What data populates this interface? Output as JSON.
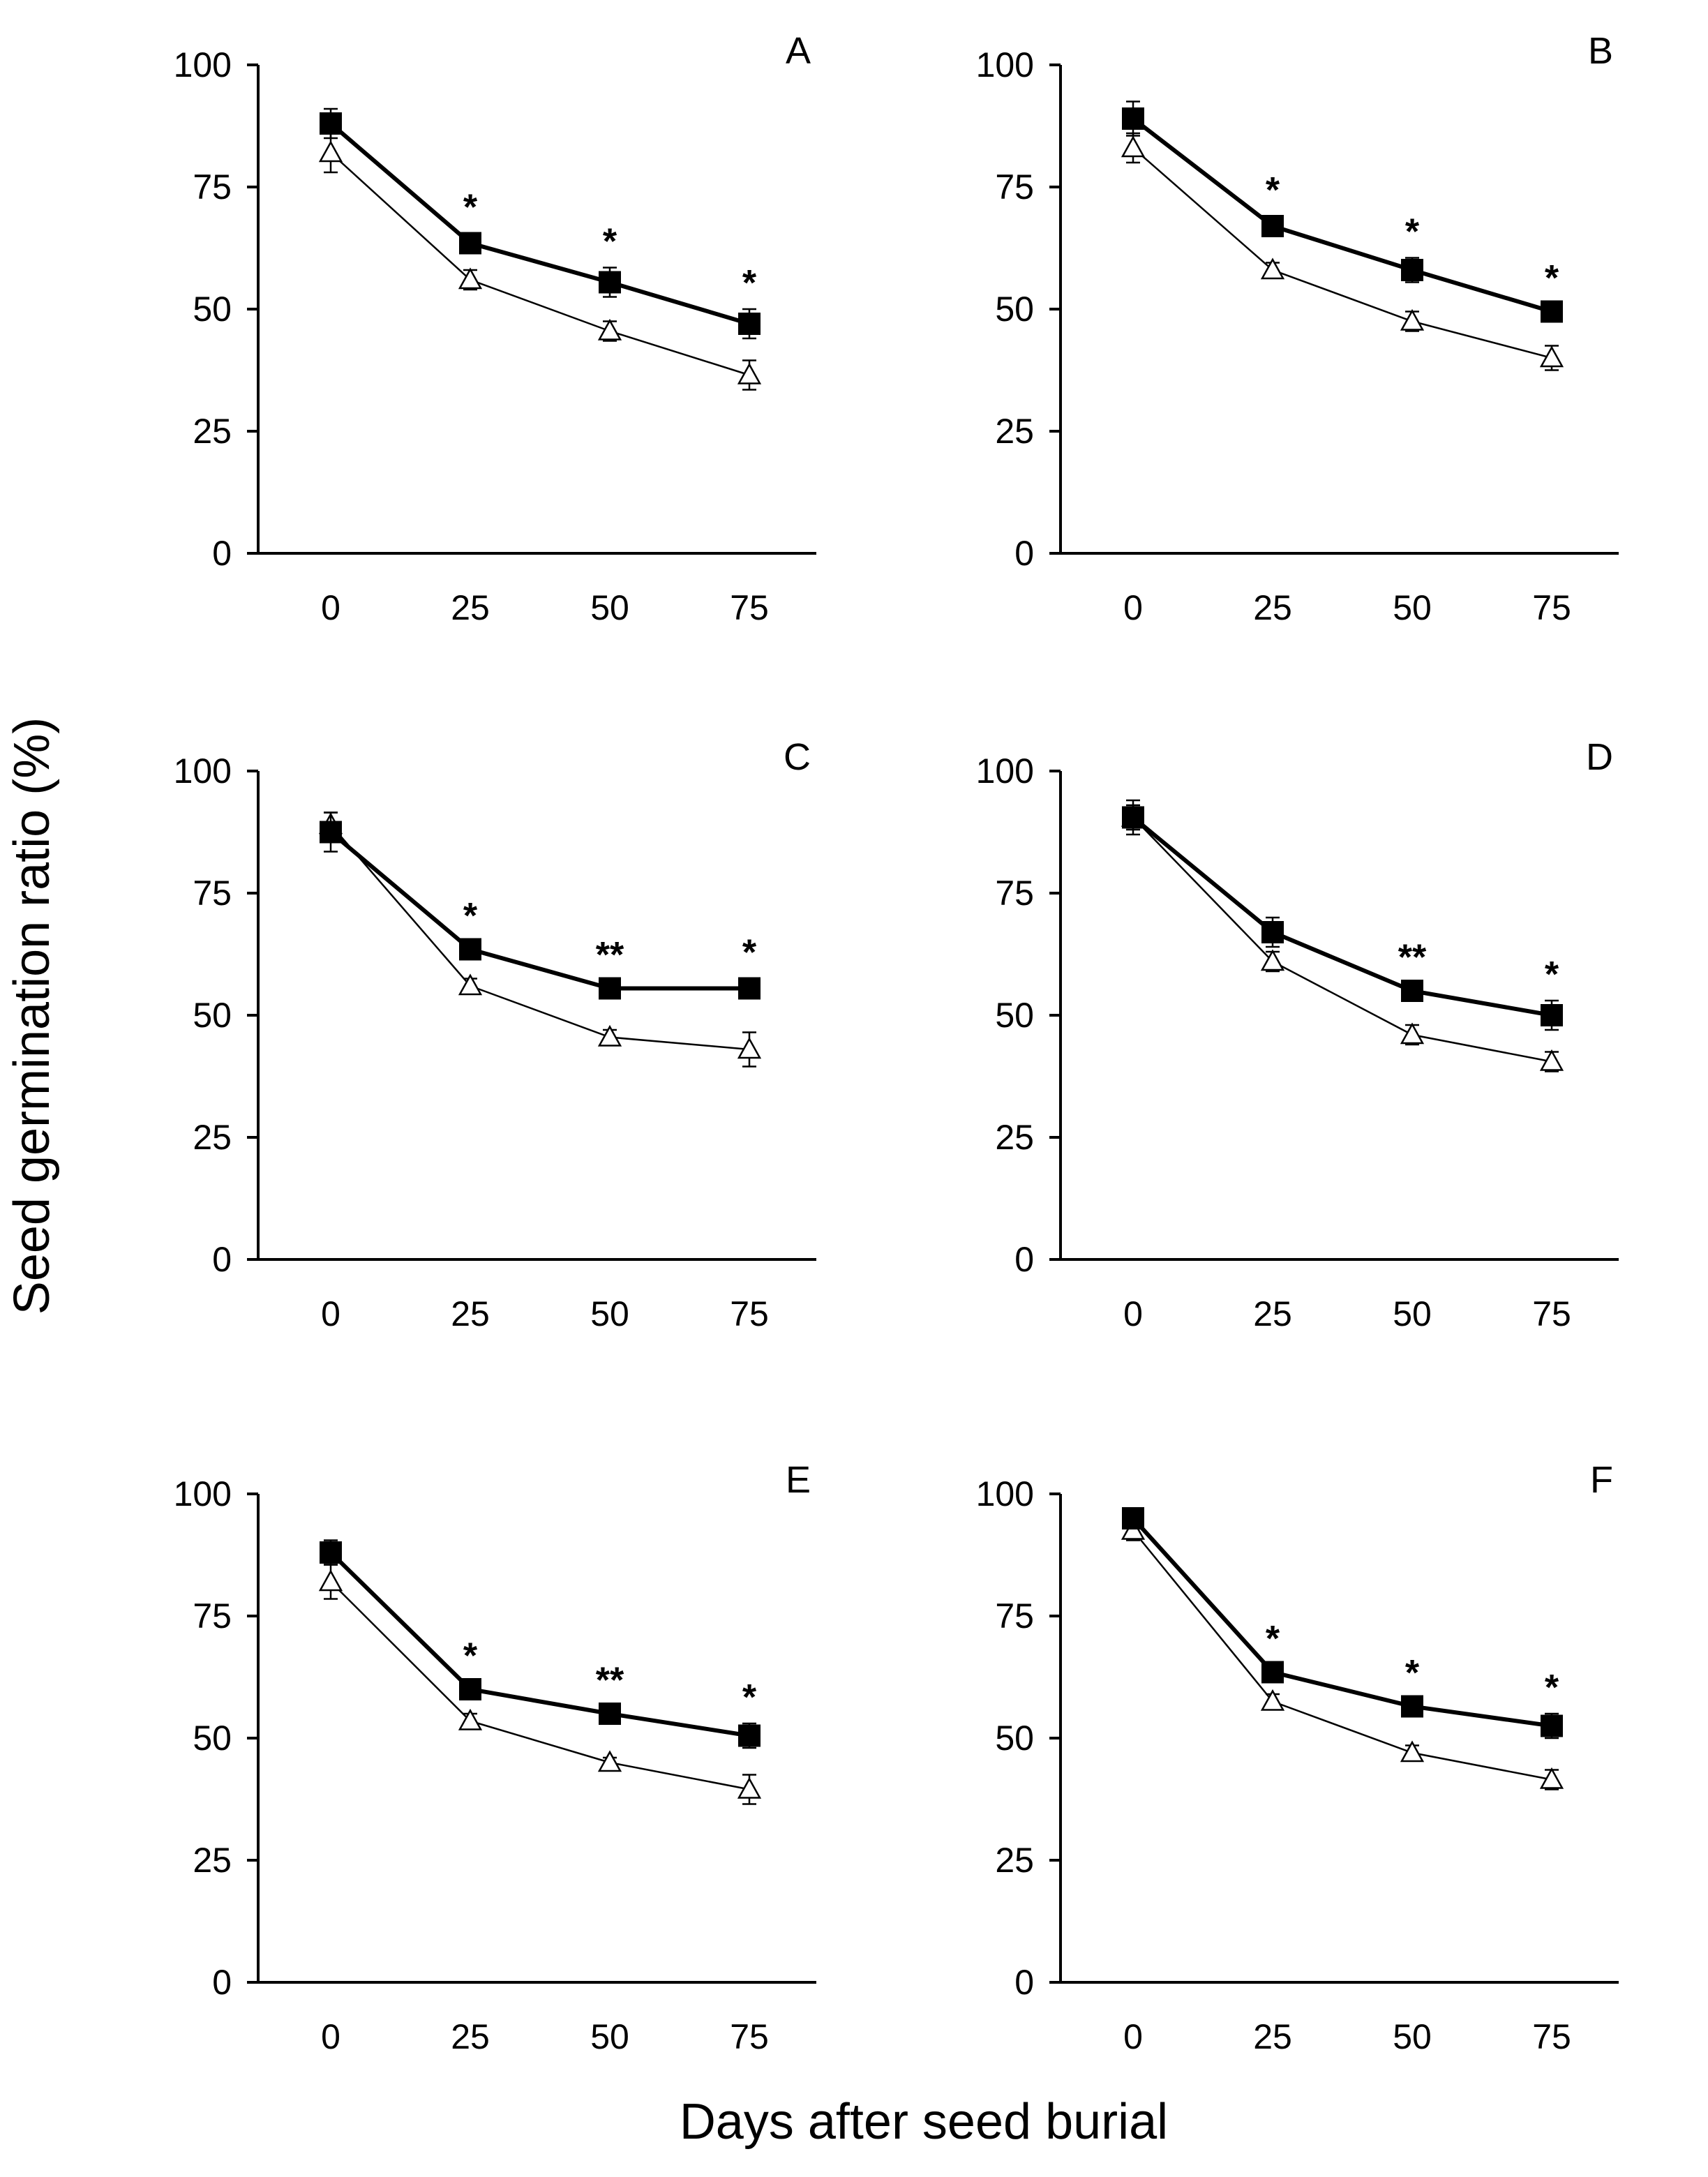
{
  "figure": {
    "ylabel": "Seed germination ratio (%)",
    "xlabel": "Days after seed burial",
    "x_ticks": [
      "0",
      "25",
      "50",
      "75"
    ],
    "y_ticks": [
      "0",
      "25",
      "50",
      "75",
      "100"
    ],
    "colors": {
      "series_filled": "#000000",
      "series_open": "#ffffff",
      "line": "#000000"
    }
  },
  "chart_data": [
    {
      "type": "line",
      "panel": "A",
      "x": [
        0,
        25,
        50,
        75
      ],
      "xlim": [
        -13,
        87
      ],
      "ylim": [
        0,
        100
      ],
      "series": [
        {
          "name": "filled-square",
          "marker": "square",
          "values": [
            88,
            63.5,
            55.5,
            47
          ],
          "errors": [
            3,
            2,
            3,
            3
          ]
        },
        {
          "name": "open-triangle",
          "marker": "triangle",
          "values": [
            82,
            56,
            45.5,
            36.5
          ],
          "errors": [
            4,
            2,
            2,
            3
          ]
        }
      ],
      "annotations": [
        {
          "x": 25,
          "text": "*"
        },
        {
          "x": 50,
          "text": "*"
        },
        {
          "x": 75,
          "text": "*"
        }
      ]
    },
    {
      "type": "line",
      "panel": "B",
      "x": [
        0,
        25,
        50,
        75
      ],
      "xlim": [
        -13,
        87
      ],
      "ylim": [
        0,
        100
      ],
      "series": [
        {
          "name": "filled-square",
          "marker": "square",
          "values": [
            89,
            67,
            58,
            49.5
          ],
          "errors": [
            3.5,
            2,
            2.5,
            1.5
          ]
        },
        {
          "name": "open-triangle",
          "marker": "triangle",
          "values": [
            83,
            58,
            47.5,
            40
          ],
          "errors": [
            3,
            1.5,
            2,
            2.5
          ]
        }
      ],
      "annotations": [
        {
          "x": 25,
          "text": "*"
        },
        {
          "x": 50,
          "text": "*"
        },
        {
          "x": 75,
          "text": "*"
        }
      ]
    },
    {
      "type": "line",
      "panel": "C",
      "x": [
        0,
        25,
        50,
        75
      ],
      "xlim": [
        -13,
        87
      ],
      "ylim": [
        0,
        100
      ],
      "series": [
        {
          "name": "filled-square",
          "marker": "square",
          "values": [
            87.5,
            63.5,
            55.5,
            55.5
          ],
          "errors": [
            4,
            1.5,
            1.5,
            2
          ]
        },
        {
          "name": "open-triangle",
          "marker": "triangle",
          "values": [
            89,
            56,
            45.5,
            43
          ],
          "errors": [
            2.5,
            1.5,
            1.5,
            3.5
          ]
        }
      ],
      "annotations": [
        {
          "x": 25,
          "text": "*"
        },
        {
          "x": 50,
          "text": "**"
        },
        {
          "x": 75,
          "text": "*"
        }
      ]
    },
    {
      "type": "line",
      "panel": "D",
      "x": [
        0,
        25,
        50,
        75
      ],
      "xlim": [
        -13,
        87
      ],
      "ylim": [
        0,
        100
      ],
      "series": [
        {
          "name": "filled-square",
          "marker": "square",
          "values": [
            90.5,
            67,
            55,
            50
          ],
          "errors": [
            3.5,
            3,
            1.5,
            3
          ]
        },
        {
          "name": "open-triangle",
          "marker": "triangle",
          "values": [
            90.5,
            61,
            46,
            40.5
          ],
          "errors": [
            2.5,
            2,
            2,
            2
          ]
        }
      ],
      "annotations": [
        {
          "x": 50,
          "text": "**"
        },
        {
          "x": 75,
          "text": "*"
        }
      ]
    },
    {
      "type": "line",
      "panel": "E",
      "x": [
        0,
        25,
        50,
        75
      ],
      "xlim": [
        -13,
        87
      ],
      "ylim": [
        0,
        100
      ],
      "series": [
        {
          "name": "filled-square",
          "marker": "square",
          "values": [
            88,
            60,
            55,
            50.5
          ],
          "errors": [
            2.5,
            1.5,
            1.5,
            2.5
          ]
        },
        {
          "name": "open-triangle",
          "marker": "triangle",
          "values": [
            82,
            53.5,
            45,
            39.5
          ],
          "errors": [
            3.5,
            1.5,
            1,
            3
          ]
        }
      ],
      "annotations": [
        {
          "x": 25,
          "text": "*"
        },
        {
          "x": 50,
          "text": "**"
        },
        {
          "x": 75,
          "text": "*"
        }
      ]
    },
    {
      "type": "line",
      "panel": "F",
      "x": [
        0,
        25,
        50,
        75
      ],
      "xlim": [
        -13,
        87
      ],
      "ylim": [
        0,
        100
      ],
      "series": [
        {
          "name": "filled-square",
          "marker": "square",
          "values": [
            95,
            63.5,
            56.5,
            52.5
          ],
          "errors": [
            1.5,
            1.5,
            1.5,
            2.5
          ]
        },
        {
          "name": "open-triangle",
          "marker": "triangle",
          "values": [
            92.5,
            57.5,
            47,
            41.5
          ],
          "errors": [
            2,
            1.5,
            1.5,
            2
          ]
        }
      ],
      "annotations": [
        {
          "x": 25,
          "text": "*"
        },
        {
          "x": 50,
          "text": "*"
        },
        {
          "x": 75,
          "text": "*"
        }
      ]
    }
  ]
}
